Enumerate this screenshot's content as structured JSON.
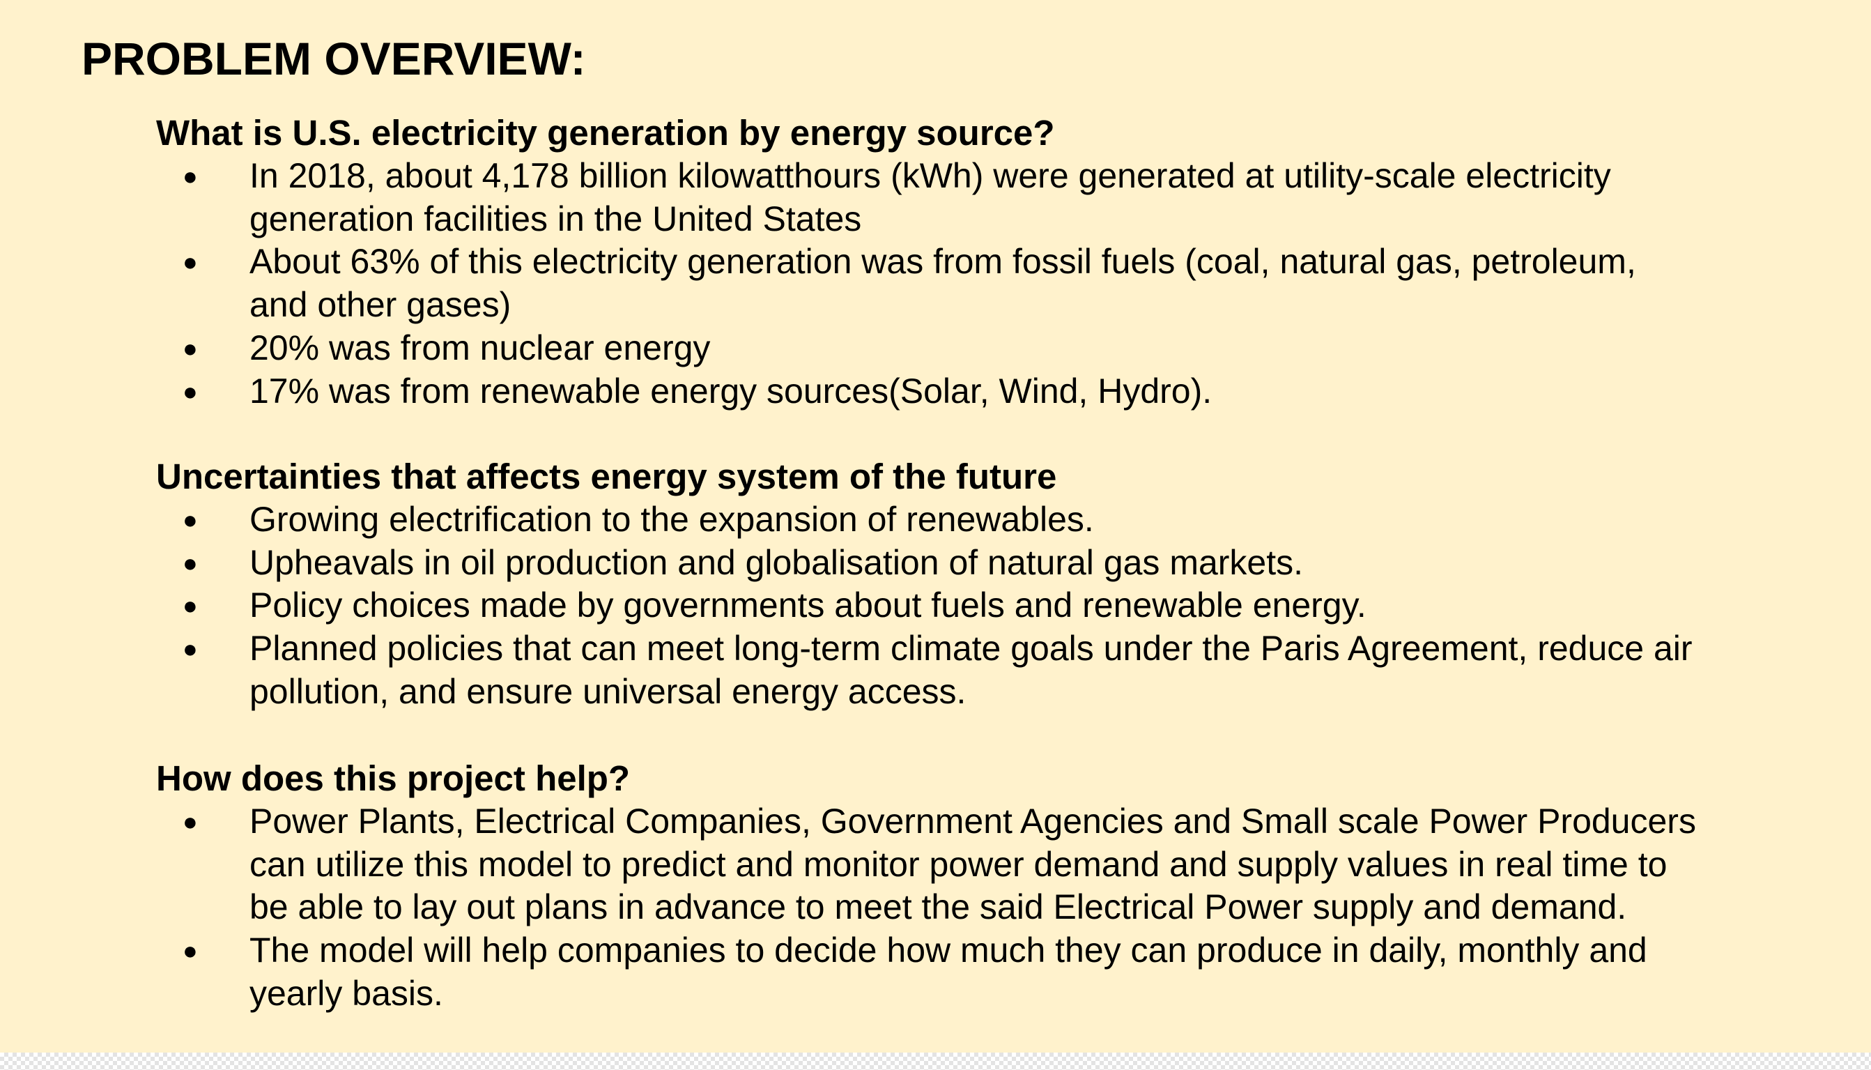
{
  "title": "PROBLEM OVERVIEW:",
  "bullet_glyph": "●",
  "sections": [
    {
      "heading": "What is U.S. electricity generation by energy source?",
      "items": [
        "In 2018, about 4,178 billion kilowatthours (kWh) were generated at utility-scale electricity generation facilities in the United States",
        "About 63% of this electricity generation was from fossil fuels (coal, natural gas, petroleum, and other gases)",
        "20% was from nuclear energy",
        "17% was from renewable energy sources(Solar, Wind, Hydro)."
      ]
    },
    {
      "heading": "Uncertainties that affects energy system of the future",
      "items": [
        "Growing electrification to the expansion of renewables.",
        "Upheavals in oil production and globalisation of natural gas markets.",
        "Policy choices made by governments about fuels and renewable energy.",
        "Planned policies that can meet long-term climate goals under the Paris Agreement, reduce air pollution, and ensure universal energy access."
      ]
    },
    {
      "heading": "How does this project help?",
      "items": [
        "Power Plants, Electrical Companies, Government Agencies and Small scale Power Producers can utilize this model to predict and monitor power demand and supply values in real time to be able to lay out plans in advance to meet the said Electrical Power supply and demand.",
        "The model will help companies to decide how much they can produce in daily, monthly and yearly basis."
      ]
    }
  ]
}
